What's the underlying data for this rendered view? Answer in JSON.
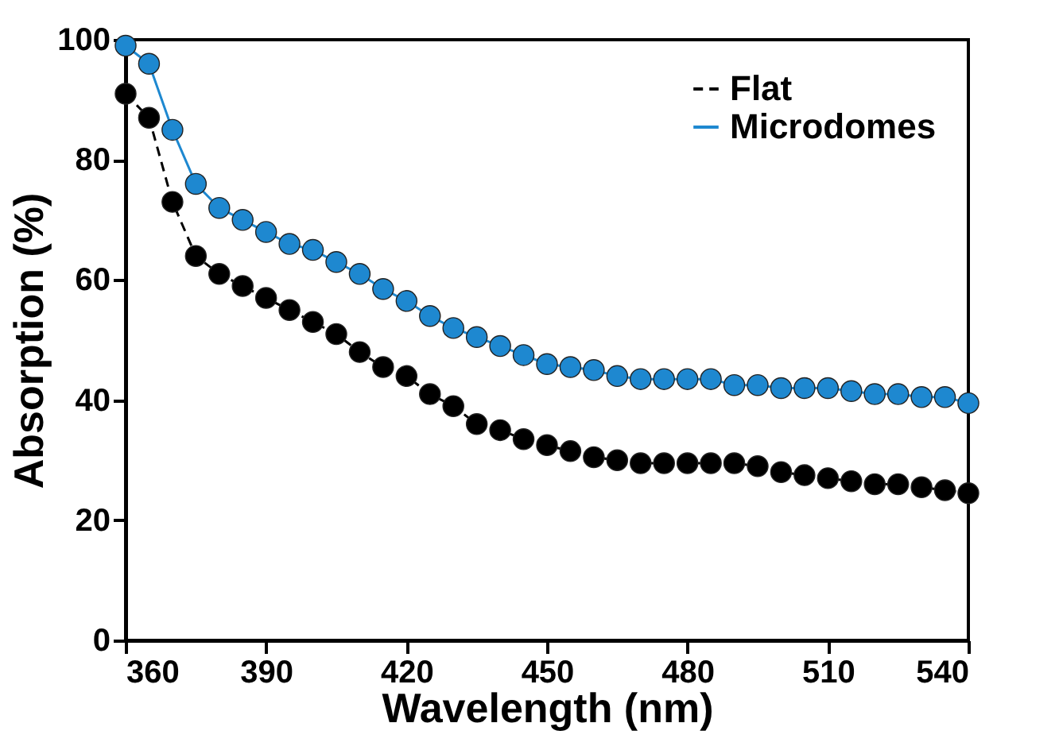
{
  "chart_data": {
    "type": "line",
    "xlabel": "Wavelength (nm)",
    "ylabel": "Absorption (%)",
    "x": [
      360,
      365,
      370,
      375,
      380,
      385,
      390,
      395,
      400,
      405,
      410,
      415,
      420,
      425,
      430,
      435,
      440,
      445,
      450,
      455,
      460,
      465,
      470,
      475,
      480,
      485,
      490,
      495,
      500,
      505,
      510,
      515,
      520,
      525,
      530,
      535,
      540
    ],
    "series": [
      {
        "name": "Flat",
        "color": "#000000",
        "line_style": "dashed",
        "values": [
          91,
          87,
          73,
          64,
          61,
          59,
          57,
          55,
          53,
          51,
          48,
          45.5,
          44,
          41,
          39,
          36,
          35,
          33.5,
          32.5,
          31.5,
          30.5,
          30,
          29.5,
          29.5,
          29.5,
          29.5,
          29.5,
          29,
          28,
          27.5,
          27,
          26.5,
          26,
          26,
          25.5,
          25,
          24.5
        ]
      },
      {
        "name": "Microdomes",
        "color": "#1e88d0",
        "line_style": "solid",
        "values": [
          99,
          96,
          85,
          76,
          72,
          70,
          68,
          66,
          65,
          63,
          61,
          58.5,
          56.5,
          54,
          52,
          50.5,
          49,
          47.5,
          46,
          45.5,
          45,
          44,
          43.5,
          43.5,
          43.5,
          43.5,
          42.5,
          42.5,
          42,
          42,
          42,
          41.5,
          41,
          41,
          40.5,
          40.5,
          39.5
        ]
      }
    ],
    "xlim": [
      360,
      540
    ],
    "xticks": [
      360,
      390,
      420,
      450,
      480,
      510,
      540
    ],
    "ylim": [
      0,
      100
    ],
    "yticks": [
      0,
      20,
      40,
      60,
      80,
      100
    ],
    "marker": "circle",
    "grid": false,
    "legend": "top right"
  }
}
